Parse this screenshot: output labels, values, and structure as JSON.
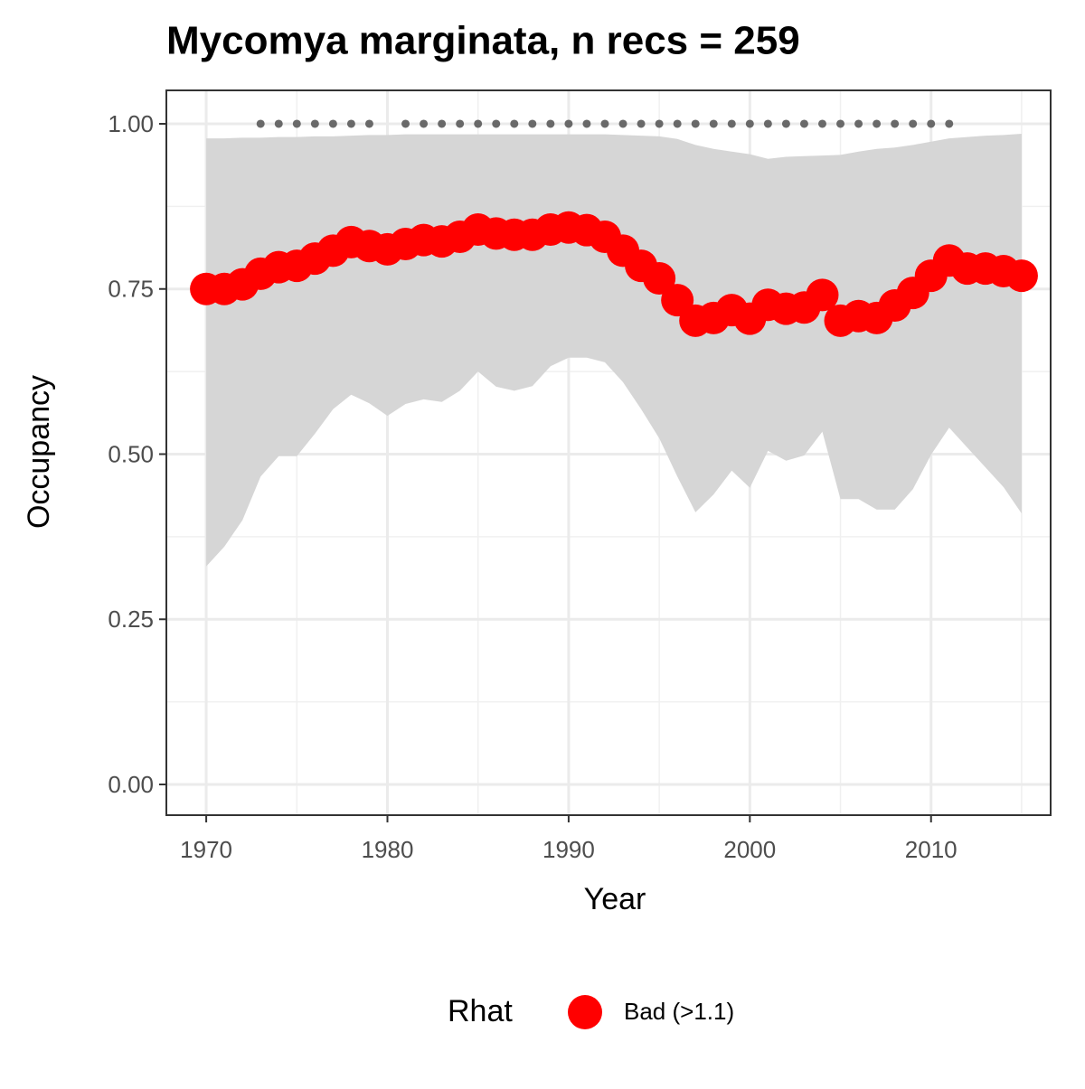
{
  "chart_data": {
    "type": "line",
    "title": "Mycomya marginata, n recs = 259",
    "x_label": "Year",
    "y_label": "Occupancy",
    "legend_title": "Rhat",
    "x": [
      1970,
      1971,
      1972,
      1973,
      1974,
      1975,
      1976,
      1977,
      1978,
      1979,
      1980,
      1981,
      1982,
      1983,
      1984,
      1985,
      1986,
      1987,
      1988,
      1989,
      1990,
      1991,
      1992,
      1993,
      1994,
      1995,
      1996,
      1997,
      1998,
      1999,
      2000,
      2001,
      2002,
      2003,
      2004,
      2005,
      2006,
      2007,
      2008,
      2009,
      2010,
      2011,
      2012,
      2013,
      2014,
      2015
    ],
    "series": [
      {
        "name": "Bad (>1.1)",
        "color": "#ff0000",
        "values": [
          0.75,
          0.75,
          0.757,
          0.773,
          0.783,
          0.785,
          0.796,
          0.808,
          0.821,
          0.815,
          0.81,
          0.818,
          0.824,
          0.822,
          0.829,
          0.84,
          0.834,
          0.832,
          0.832,
          0.84,
          0.843,
          0.839,
          0.829,
          0.808,
          0.785,
          0.766,
          0.733,
          0.702,
          0.706,
          0.718,
          0.705,
          0.726,
          0.72,
          0.722,
          0.741,
          0.702,
          0.709,
          0.706,
          0.725,
          0.744,
          0.77,
          0.793,
          0.781,
          0.781,
          0.777,
          0.77
        ]
      }
    ],
    "band": {
      "color": "#d6d6d6",
      "lower": [
        0.33,
        0.36,
        0.4,
        0.466,
        0.497,
        0.497,
        0.531,
        0.568,
        0.59,
        0.577,
        0.558,
        0.576,
        0.583,
        0.579,
        0.596,
        0.625,
        0.602,
        0.596,
        0.603,
        0.633,
        0.646,
        0.646,
        0.639,
        0.609,
        0.568,
        0.524,
        0.466,
        0.412,
        0.439,
        0.475,
        0.449,
        0.505,
        0.49,
        0.498,
        0.534,
        0.432,
        0.432,
        0.416,
        0.416,
        0.447,
        0.499,
        0.54,
        0.51,
        0.48,
        0.45,
        0.41
      ],
      "upper": [
        0.978,
        0.978,
        0.979,
        0.979,
        0.98,
        0.98,
        0.981,
        0.981,
        0.982,
        0.983,
        0.983,
        0.984,
        0.984,
        0.984,
        0.984,
        0.984,
        0.984,
        0.984,
        0.984,
        0.984,
        0.984,
        0.984,
        0.984,
        0.983,
        0.982,
        0.981,
        0.977,
        0.968,
        0.962,
        0.958,
        0.954,
        0.947,
        0.95,
        0.951,
        0.952,
        0.953,
        0.958,
        0.962,
        0.964,
        0.968,
        0.973,
        0.978,
        0.98,
        0.982,
        0.983,
        0.985
      ]
    },
    "markers": {
      "color": "#696969",
      "x": [
        1973,
        1974,
        1975,
        1976,
        1977,
        1978,
        1979,
        1981,
        1982,
        1983,
        1984,
        1985,
        1986,
        1987,
        1988,
        1989,
        1990,
        1991,
        1992,
        1993,
        1994,
        1995,
        1996,
        1997,
        1998,
        1999,
        2000,
        2001,
        2002,
        2003,
        2004,
        2005,
        2006,
        2007,
        2008,
        2009,
        2010,
        2011
      ],
      "values": [
        1,
        1,
        1,
        1,
        1,
        1,
        1,
        1,
        1,
        1,
        1,
        1,
        1,
        1,
        1,
        1,
        1,
        1,
        1,
        1,
        1,
        1,
        1,
        1,
        1,
        1,
        1,
        1,
        1,
        1,
        1,
        1,
        1,
        1,
        1,
        1,
        1,
        1
      ]
    },
    "xlim": [
      1967.8,
      2016.6
    ],
    "ylim": [
      -0.0465,
      1.0506
    ],
    "xticks": [
      1970,
      1980,
      1990,
      2000,
      2010
    ],
    "xminor": [
      1975,
      1985,
      1995,
      2005,
      2015
    ],
    "yticks": [
      {
        "value": 0,
        "label": "0.00"
      },
      {
        "value": 0.25,
        "label": "0.25"
      },
      {
        "value": 0.5,
        "label": "0.50"
      },
      {
        "value": 0.75,
        "label": "0.75"
      },
      {
        "value": 1,
        "label": "1.00"
      }
    ],
    "yminor": [
      0.125,
      0.375,
      0.625,
      0.875
    ],
    "grid": true
  }
}
